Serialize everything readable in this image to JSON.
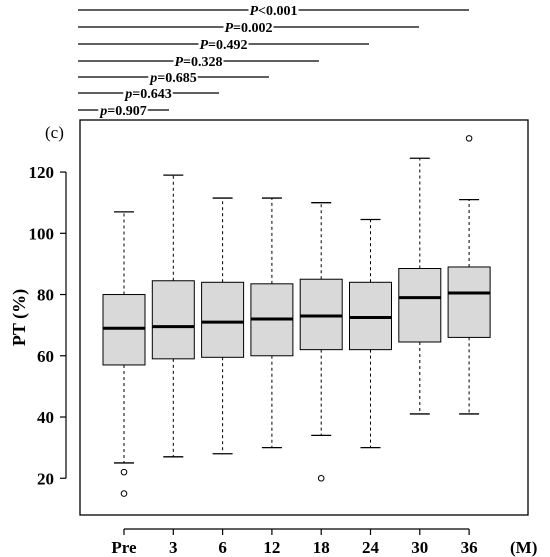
{
  "chart_data": {
    "type": "boxplot",
    "panel_label": "(c)",
    "ylabel": "PT (%)",
    "x_unit": "(M)",
    "categories": [
      "Pre",
      "3",
      "6",
      "12",
      "18",
      "24",
      "30",
      "36"
    ],
    "ylim": [
      8,
      137
    ],
    "yticks": [
      20,
      40,
      60,
      80,
      100,
      120
    ],
    "box_fill": "#d9d9d9",
    "boxes": [
      {
        "label": "Pre",
        "whisker_low": 25,
        "q1": 57,
        "median": 69,
        "q3": 80,
        "whisker_high": 107,
        "outliers": [
          22,
          15
        ]
      },
      {
        "label": "3",
        "whisker_low": 27,
        "q1": 59,
        "median": 69.5,
        "q3": 84.5,
        "whisker_high": 119,
        "outliers": []
      },
      {
        "label": "6",
        "whisker_low": 28,
        "q1": 59.5,
        "median": 71,
        "q3": 84,
        "whisker_high": 111.5,
        "outliers": []
      },
      {
        "label": "12",
        "whisker_low": 30,
        "q1": 60,
        "median": 72,
        "q3": 83.5,
        "whisker_high": 111.5,
        "outliers": []
      },
      {
        "label": "18",
        "whisker_low": 34,
        "q1": 62,
        "median": 73,
        "q3": 85,
        "whisker_high": 110,
        "outliers": [
          20
        ]
      },
      {
        "label": "24",
        "whisker_low": 30,
        "q1": 62,
        "median": 72.5,
        "q3": 84,
        "whisker_high": 104.5,
        "outliers": []
      },
      {
        "label": "30",
        "whisker_low": 41,
        "q1": 64.5,
        "median": 79,
        "q3": 88.5,
        "whisker_high": 124.5,
        "outliers": []
      },
      {
        "label": "36",
        "whisker_low": 41,
        "q1": 66,
        "median": 80.5,
        "q3": 89,
        "whisker_high": 111,
        "outliers": [
          131
        ]
      }
    ],
    "comparisons": [
      {
        "label_p": "P",
        "label_rest": "<0.001",
        "from": "Pre",
        "to": "36"
      },
      {
        "label_p": "P",
        "label_rest": "=0.002",
        "from": "Pre",
        "to": "30"
      },
      {
        "label_p": "P",
        "label_rest": "=0.492",
        "from": "Pre",
        "to": "24"
      },
      {
        "label_p": "P",
        "label_rest": "=0.328",
        "from": "Pre",
        "to": "18"
      },
      {
        "label_p": "p",
        "label_rest": "=0.685",
        "from": "Pre",
        "to": "12"
      },
      {
        "label_p": "p",
        "label_rest": "=0.643",
        "from": "Pre",
        "to": "6"
      },
      {
        "label_p": "p",
        "label_rest": "=0.907",
        "from": "Pre",
        "to": "3"
      }
    ]
  }
}
